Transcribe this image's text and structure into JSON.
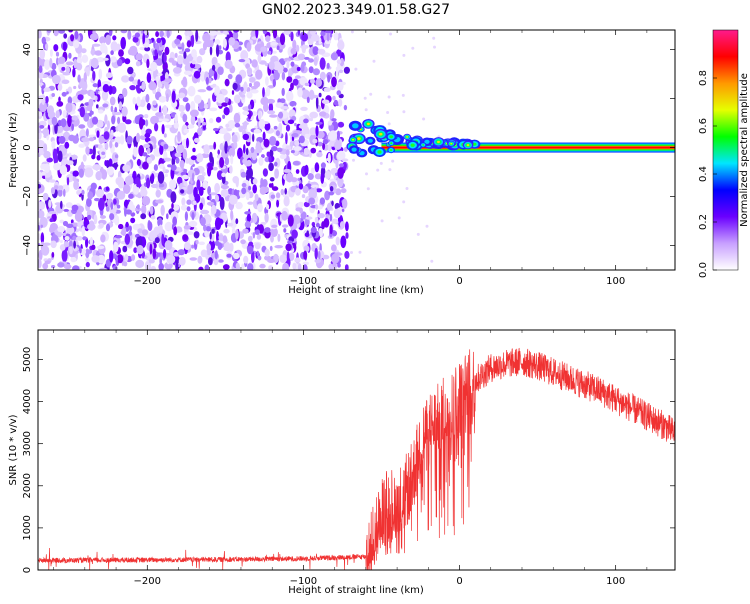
{
  "title": "GN02.2023.349.01.58.G27",
  "chart_data": [
    {
      "type": "heatmap",
      "xlabel": "Height of straight line (km)",
      "ylabel": "Frequency (Hz)",
      "xlim": [
        -270,
        138
      ],
      "ylim": [
        -50,
        48
      ],
      "xticks": [
        -200,
        -100,
        0,
        100
      ],
      "yticks": [
        -40,
        -20,
        0,
        20,
        40
      ],
      "noise_region_x": [
        -270,
        -72
      ],
      "transition_region_x": [
        -72,
        10
      ],
      "signal_line": {
        "x_start": -50,
        "x_end": 138,
        "frequency": 0
      },
      "colorbar": {
        "label": "Normalized spectral amplitude",
        "range": [
          0.0,
          1.0
        ],
        "ticks": [
          0.0,
          0.2,
          0.4,
          0.6,
          0.8
        ],
        "tick_labels": [
          "0.0",
          "0.2",
          "0.4",
          "0.6",
          "0.8"
        ],
        "colors": [
          "#ffffff",
          "#c8a0ff",
          "#6a00ff",
          "#0000ff",
          "#00e6ff",
          "#00ff00",
          "#e6ff00",
          "#ff9900",
          "#ff0000",
          "#ff1a8c"
        ]
      }
    },
    {
      "type": "line",
      "xlabel": "Height of straight line (km)",
      "ylabel": "SNR (10 * v/v)",
      "xlim": [
        -270,
        138
      ],
      "ylim": [
        0,
        5700
      ],
      "xticks": [
        -200,
        -100,
        0,
        100
      ],
      "yticks": [
        0,
        1000,
        2000,
        3000,
        4000,
        5000
      ],
      "color": "#f03232",
      "x": [
        -270,
        -250,
        -200,
        -150,
        -100,
        -60,
        -55,
        -50,
        -45,
        -40,
        -35,
        -30,
        -25,
        -20,
        -10,
        0,
        10,
        20,
        30,
        40,
        50,
        60,
        70,
        80,
        90,
        100,
        110,
        120,
        130,
        138
      ],
      "y": [
        230,
        230,
        240,
        250,
        270,
        320,
        700,
        1300,
        1600,
        1500,
        1800,
        2200,
        3000,
        3300,
        3700,
        4100,
        4500,
        4800,
        4900,
        4950,
        4850,
        4700,
        4550,
        4400,
        4250,
        4050,
        3850,
        3650,
        3450,
        3250
      ]
    }
  ]
}
